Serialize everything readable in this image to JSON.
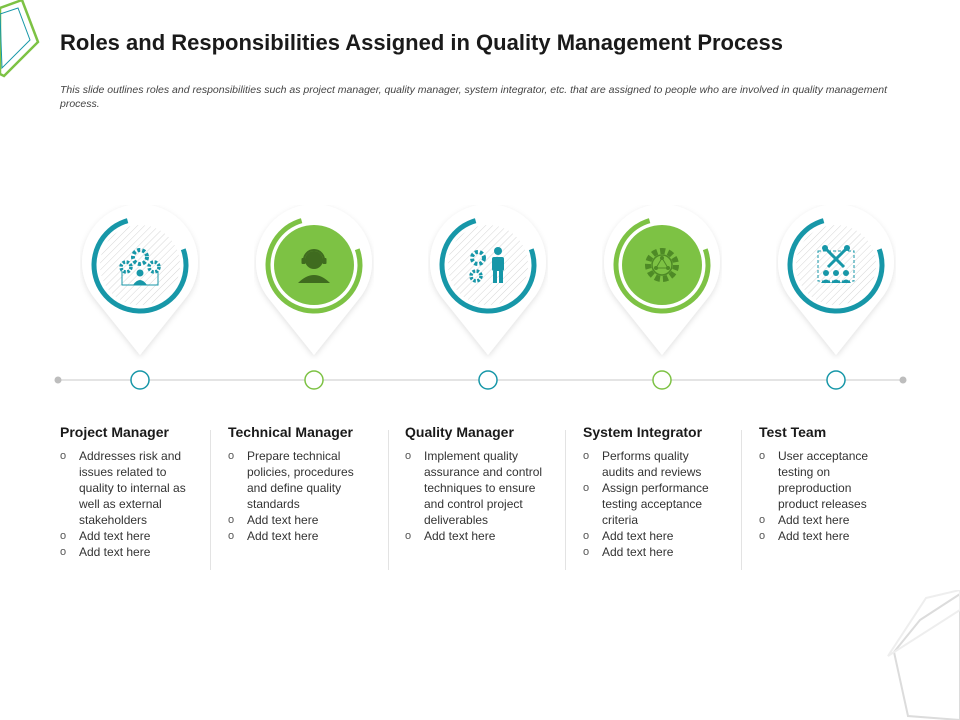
{
  "header": {
    "title": "Roles and Responsibilities Assigned in Quality Management Process",
    "subtitle": "This slide outlines roles and responsibilities such as project manager, quality manager, system integrator, etc. that are assigned to people who are involved in quality management process."
  },
  "colors": {
    "teal": "#1797a8",
    "green": "#7dc244",
    "line": "#d4d4d4",
    "dot": "#bdbdbd"
  },
  "bullet_glyph": "o",
  "roles": [
    {
      "title": "Project Manager",
      "icon": "team-gears-icon",
      "color": "#1797a8",
      "bullets": [
        "Addresses risk and issues related to quality to internal as well as external stakeholders",
        "Add text here",
        "Add text here"
      ]
    },
    {
      "title": "Technical Manager",
      "icon": "headset-person-icon",
      "color": "#7dc244",
      "bullets": [
        "Prepare technical policies, procedures and define quality standards",
        "Add text here",
        "Add text here"
      ]
    },
    {
      "title": "Quality Manager",
      "icon": "gears-person-icon",
      "color": "#1797a8",
      "bullets": [
        "Implement quality assurance and control techniques to ensure and control project deliverables",
        "Add text here"
      ]
    },
    {
      "title": "System Integrator",
      "icon": "network-gear-icon",
      "color": "#7dc244",
      "bullets": [
        "Performs quality audits and reviews",
        "Assign performance testing acceptance criteria",
        "Add text here",
        "Add text here"
      ]
    },
    {
      "title": "Test Team",
      "icon": "tools-team-icon",
      "color": "#1797a8",
      "bullets": [
        "User acceptance testing on preproduction product releases",
        "Add text here",
        "Add text here"
      ]
    }
  ]
}
